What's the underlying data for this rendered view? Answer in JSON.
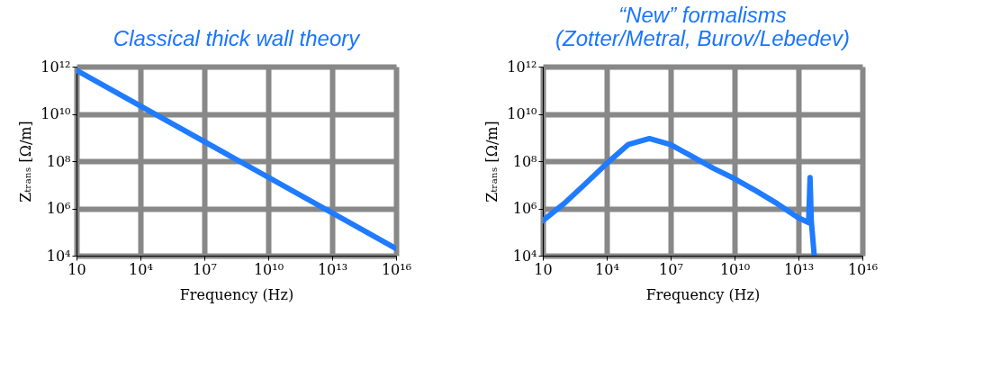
{
  "chart_data": [
    {
      "type": "line",
      "title": "Classical thick wall theory",
      "xlabel": "Frequency (Hz)",
      "ylabel": "Zₜᵣₐₙₛ [Ω/m]",
      "log": "xy",
      "grid": true,
      "marker": "none",
      "line_style": "solid",
      "xlim": [
        10,
        1e+16
      ],
      "ylim": [
        10000.0,
        1000000000000.0
      ],
      "xticks": [
        10,
        {
          "value": 10000.0,
          "label": "10⁴"
        },
        {
          "value": 10000000.0,
          "label": "10⁷"
        },
        {
          "value": 10000000000.0,
          "label": "10¹⁰"
        },
        {
          "value": 10000000000000.0,
          "label": "10¹³"
        },
        {
          "value": 1e+16,
          "label": "10¹⁶"
        }
      ],
      "yticks": [
        {
          "value": 10000.0,
          "label": "10⁴"
        },
        {
          "value": 1000000.0,
          "label": "10⁶"
        },
        {
          "value": 100000000.0,
          "label": "10⁸"
        },
        {
          "value": 10000000000.0,
          "label": "10¹⁰"
        },
        {
          "value": 1000000000000.0,
          "label": "10¹²"
        }
      ],
      "series": [
        {
          "color": "#1f7bff",
          "x": [
            10,
            1e+16
          ],
          "values": [
            700000000000.0,
            20000.0
          ]
        }
      ]
    },
    {
      "type": "line",
      "title": "“New” formalisms\n(Zotter/Metral, Burov/Lebedev)",
      "xlabel": "Frequency (Hz)",
      "ylabel": "Zₜᵣₐₙₛ [Ω/m]",
      "log": "xy",
      "grid": true,
      "marker": "none",
      "line_style": "solid",
      "xlim": [
        10,
        1e+16
      ],
      "ylim": [
        10000.0,
        1000000000000.0
      ],
      "xticks": [
        10,
        {
          "value": 10000.0,
          "label": "10⁴"
        },
        {
          "value": 10000000.0,
          "label": "10⁷"
        },
        {
          "value": 10000000000.0,
          "label": "10¹⁰"
        },
        {
          "value": 10000000000000.0,
          "label": "10¹³"
        },
        {
          "value": 1e+16,
          "label": "10¹⁶"
        }
      ],
      "yticks": [
        {
          "value": 10000.0,
          "label": "10⁴"
        },
        {
          "value": 1000000.0,
          "label": "10⁶"
        },
        {
          "value": 100000000.0,
          "label": "10⁸"
        },
        {
          "value": 10000000000.0,
          "label": "10¹⁰"
        },
        {
          "value": 1000000000000.0,
          "label": "10¹²"
        }
      ],
      "series": [
        {
          "color": "#1f7bff",
          "x": [
            10,
            100,
            1000,
            10000.0,
            100000.0,
            1000000.0,
            10000000.0,
            100000000.0,
            1000000000.0,
            10000000000.0,
            100000000000.0,
            1000000000000.0,
            10000000000000.0,
            30000000000000.0,
            35000000000000.0,
            40000000000000.0,
            55000000000000.0
          ],
          "values": [
            300000.0,
            1600000.0,
            11000000.0,
            80000000.0,
            500000000.0,
            900000000.0,
            500000000.0,
            160000000.0,
            50000000.0,
            18000000.0,
            5600000.0,
            1600000.0,
            400000.0,
            250000.0,
            20000000.0,
            300000.0,
            10000.0
          ]
        }
      ]
    }
  ]
}
